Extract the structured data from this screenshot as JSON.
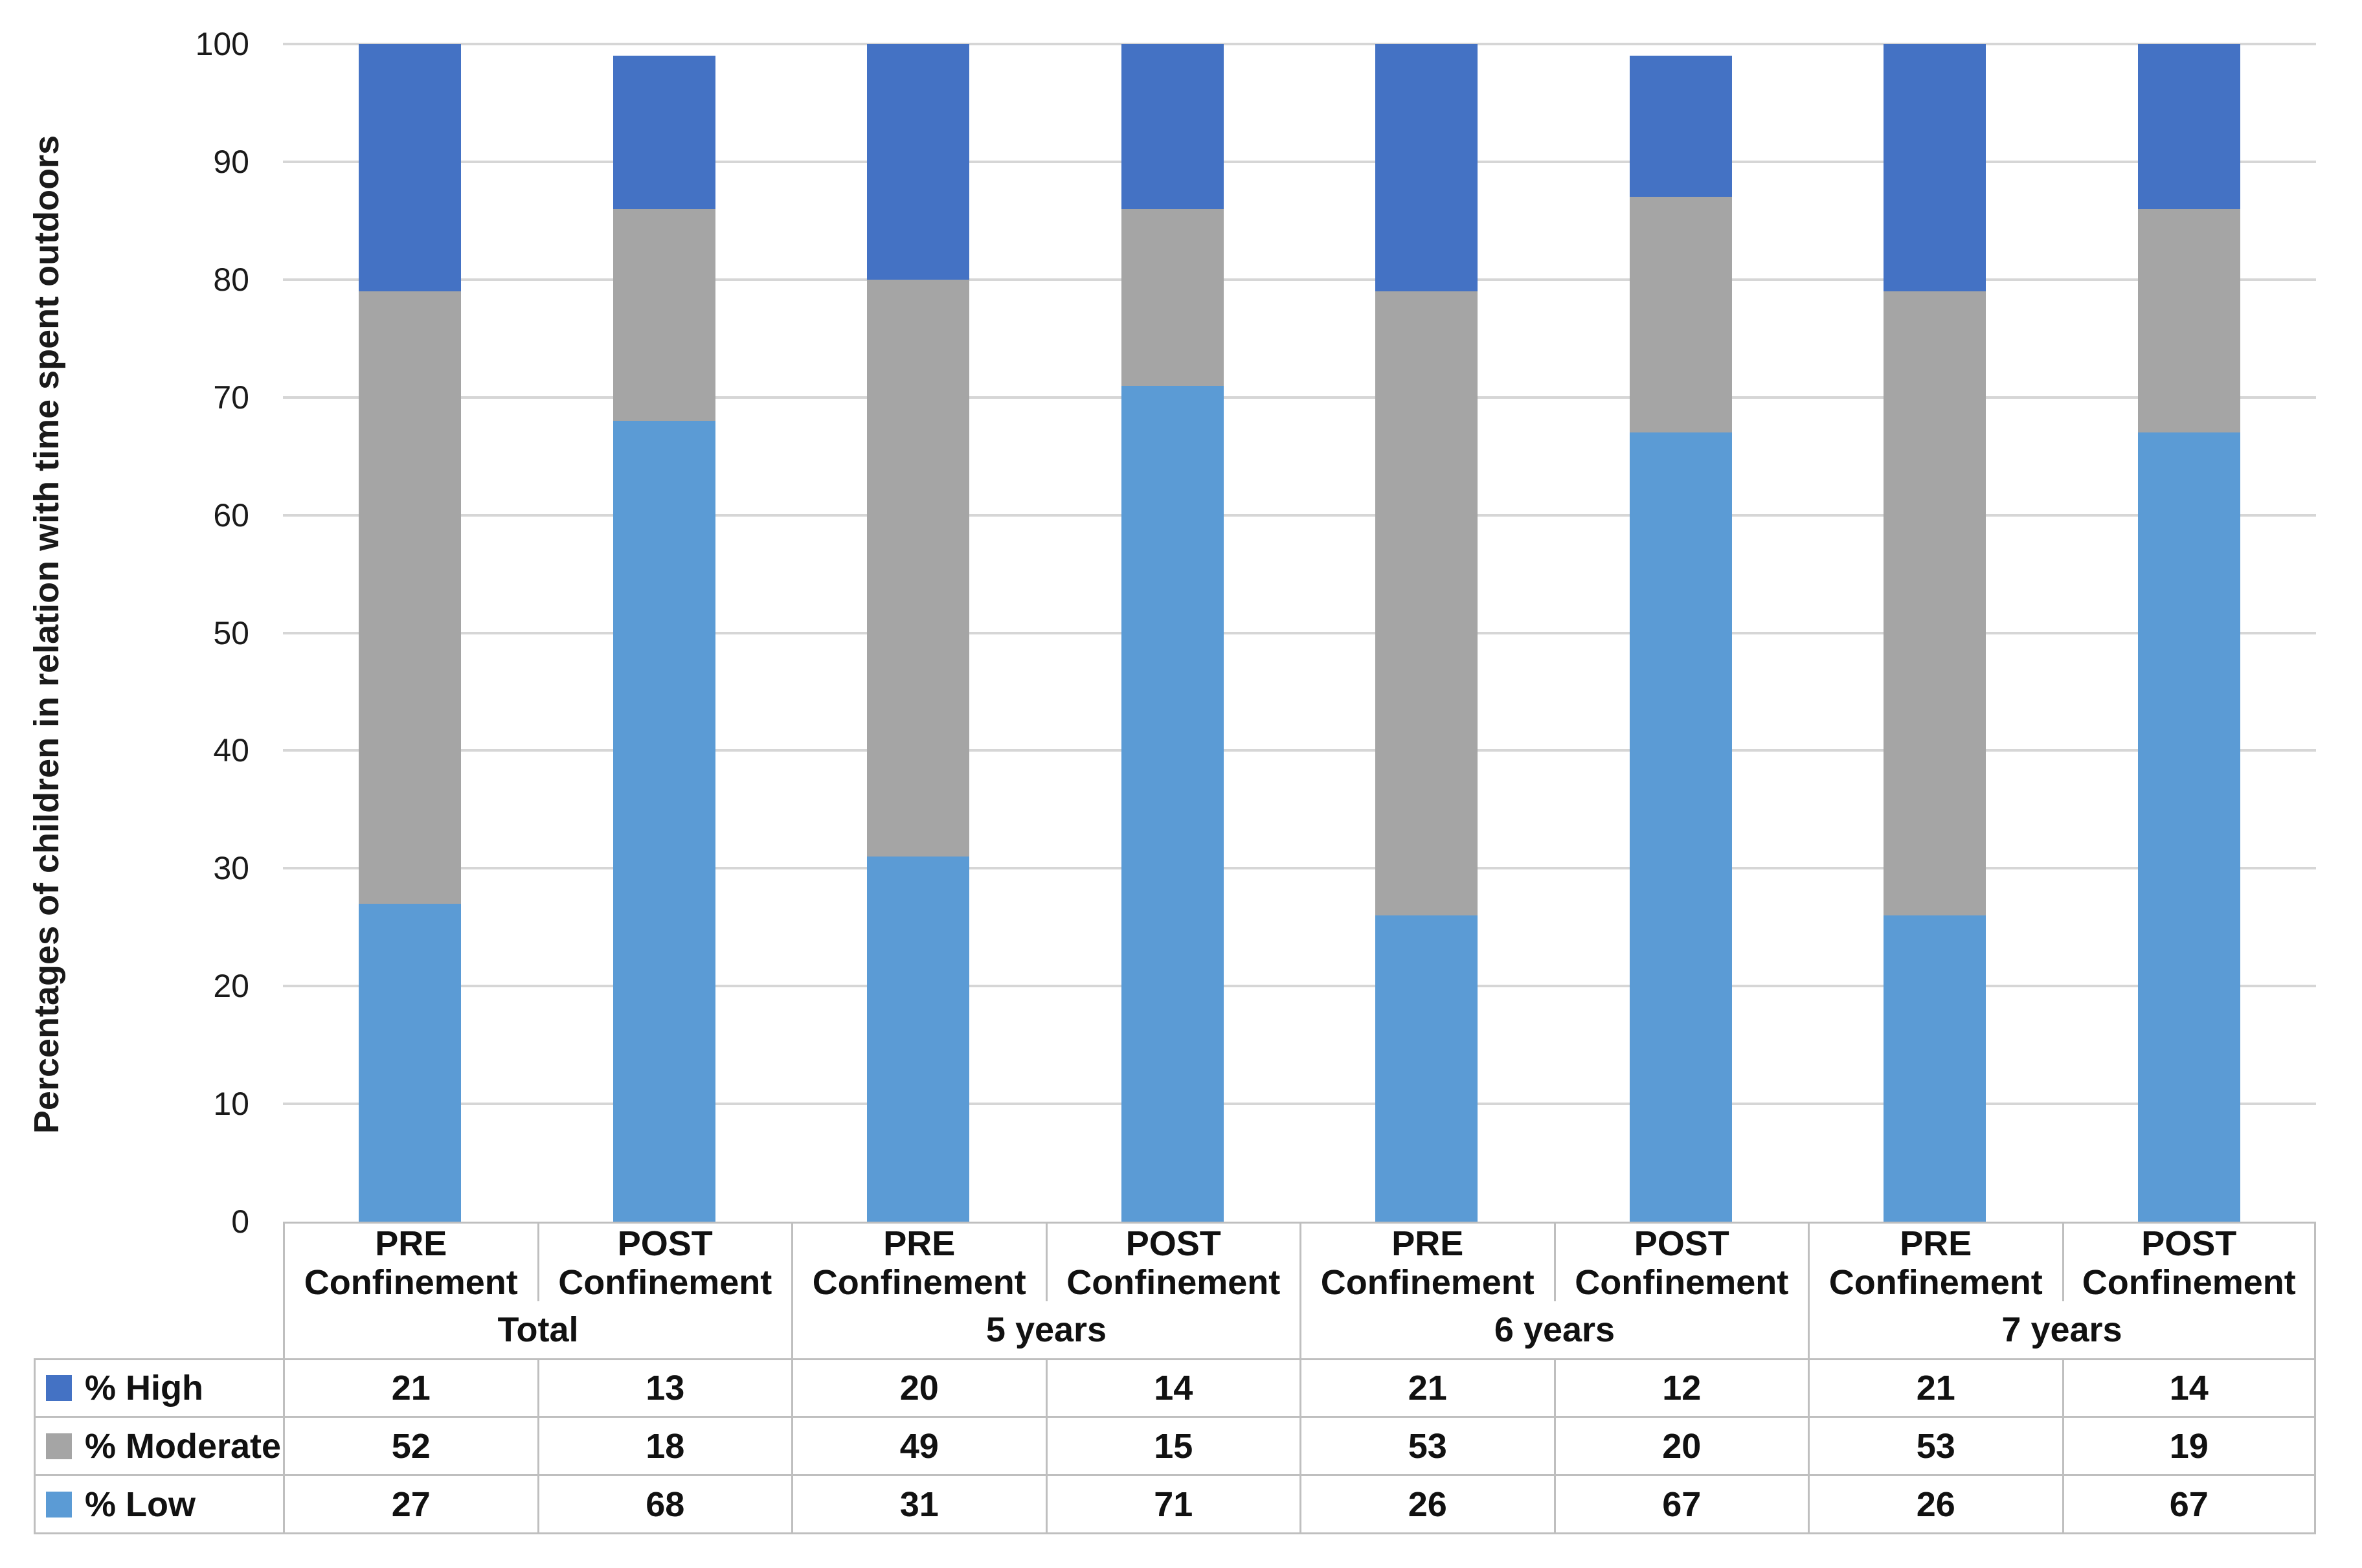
{
  "figure": {
    "background": "#FFFFFF",
    "text_color": "#1A1A1A",
    "gridline_color": "#D6D6D6",
    "table_border_color": "#BFBFBF"
  },
  "chart_data": {
    "type": "bar",
    "stacked": true,
    "title": "",
    "xlabel": "",
    "ylabel": "Percentages of children in relation with time spent outdoors",
    "ylim": [
      0,
      100
    ],
    "yticks": [
      0,
      10,
      20,
      30,
      40,
      50,
      60,
      70,
      80,
      90,
      100
    ],
    "grid": true,
    "legend_position": "table-left",
    "groups": [
      "Total",
      "5 years",
      "6 years",
      "7 years"
    ],
    "categories": [
      "PRE Confinement (Total)",
      "POST Confinement (Total)",
      "PRE Confinement (5 years)",
      "POST Confinement (5 years)",
      "PRE Confinement (6 years)",
      "POST Confinement (6 years)",
      "PRE Confinement (7 years)",
      "POST Confinement (7 years)"
    ],
    "stack_order_bottom_to_top": [
      "% Low",
      "% Moderate",
      "% High"
    ],
    "series": [
      {
        "name": "% High",
        "color": "#4472C4",
        "values": [
          21,
          13,
          20,
          14,
          21,
          12,
          21,
          14
        ]
      },
      {
        "name": "% Moderate",
        "color": "#A5A5A5",
        "values": [
          52,
          18,
          49,
          15,
          53,
          20,
          53,
          19
        ]
      },
      {
        "name": "% Low",
        "color": "#5B9BD5",
        "values": [
          27,
          68,
          31,
          71,
          26,
          67,
          26,
          67
        ]
      }
    ]
  },
  "table": {
    "column_header_line1": [
      "PRE",
      "POST",
      "PRE",
      "POST",
      "PRE",
      "POST",
      "PRE",
      "POST"
    ],
    "column_header_line2": [
      "Confinement",
      "Confinement",
      "Confinement",
      "Confinement",
      "Confinement",
      "Confinement",
      "Confinement",
      "Confinement"
    ],
    "group_row": [
      "Total",
      "5 years",
      "6 years",
      "7 years"
    ],
    "rows": [
      {
        "label": "% High",
        "swatch_color": "#4472C4",
        "values": [
          "21",
          "13",
          "20",
          "14",
          "21",
          "12",
          "21",
          "14"
        ]
      },
      {
        "label": "% Moderate",
        "swatch_color": "#A5A5A5",
        "values": [
          "52",
          "18",
          "49",
          "15",
          "53",
          "20",
          "53",
          "19"
        ]
      },
      {
        "label": "% Low",
        "swatch_color": "#5B9BD5",
        "values": [
          "27",
          "68",
          "31",
          "71",
          "26",
          "67",
          "26",
          "67"
        ]
      }
    ]
  }
}
